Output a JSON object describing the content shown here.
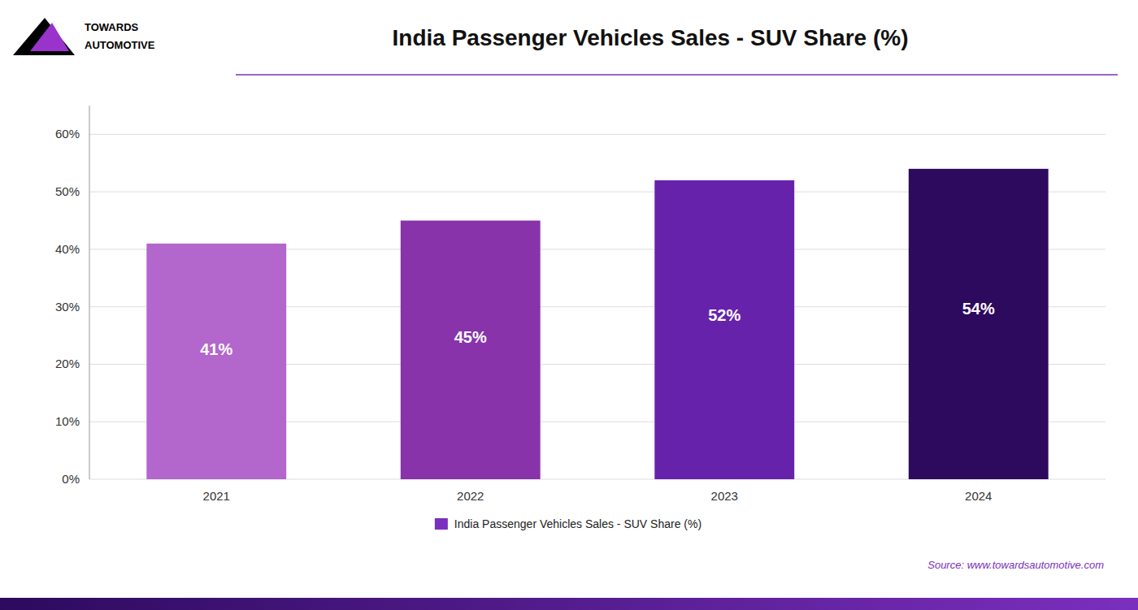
{
  "chart_data": {
    "type": "bar",
    "title": "India Passenger Vehicles Sales - SUV Share (%)",
    "categories": [
      "2021",
      "2022",
      "2023",
      "2024"
    ],
    "series": [
      {
        "name": "India Passenger Vehicles Sales - SUV Share (%)",
        "color": "#7b2fbe",
        "colors": [
          "#b366cc",
          "#8833aa",
          "#6622aa",
          "#2d0a5e"
        ],
        "values": [
          41,
          45,
          52,
          54
        ],
        "value_labels": [
          "41%",
          "45%",
          "52%",
          "54%"
        ]
      }
    ],
    "data_labels": true,
    "ylim": [
      0,
      65
    ],
    "yticks": [
      {
        "value": 0,
        "label": "0%"
      },
      {
        "value": 10,
        "label": "10%"
      },
      {
        "value": 20,
        "label": "20%"
      },
      {
        "value": 30,
        "label": "30%"
      },
      {
        "value": 40,
        "label": "40%"
      },
      {
        "value": 50,
        "label": "50%"
      },
      {
        "value": 60,
        "label": "60%"
      }
    ],
    "grid": true,
    "legend": "bottom",
    "annotations": [
      "TOWARDS",
      "AUTOMOTIVE",
      "Source: www.towardsautomotive.com"
    ]
  }
}
